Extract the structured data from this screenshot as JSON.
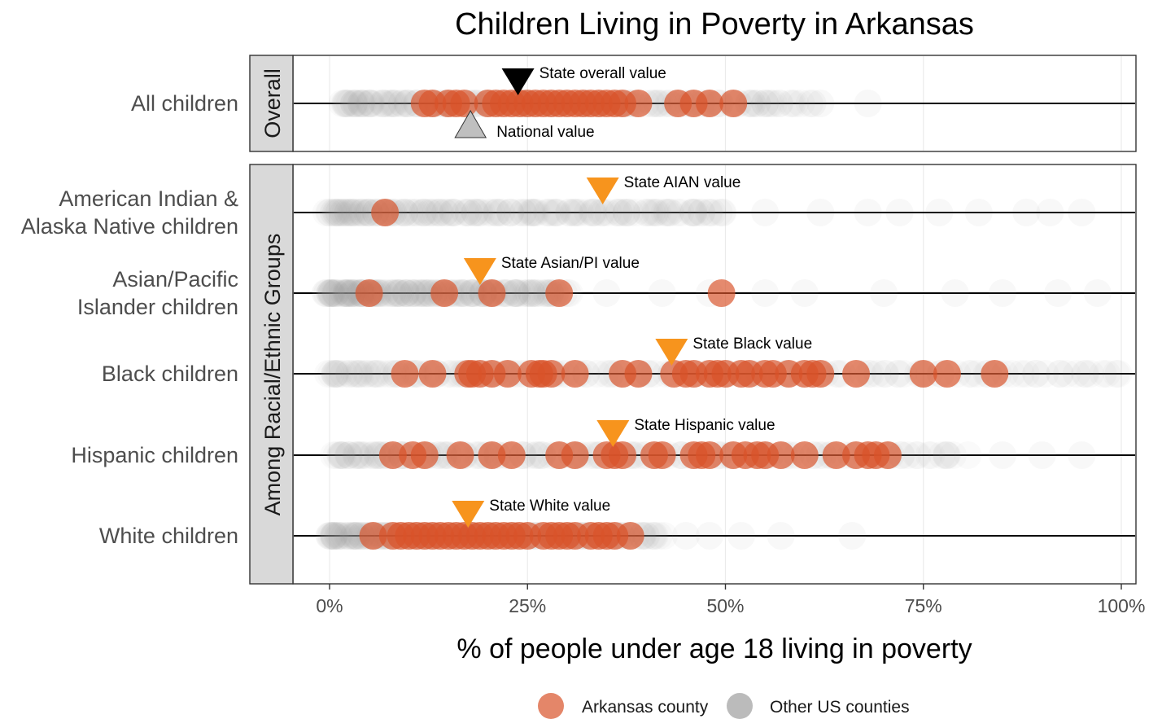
{
  "chart_data": {
    "type": "scatter",
    "title": "Children Living in Poverty in Arkansas",
    "xlabel": "% of people under age 18 living in poverty",
    "xlim": [
      0,
      100
    ],
    "x_ticks": [
      "0%",
      "25%",
      "50%",
      "75%",
      "100%"
    ],
    "x_tick_values": [
      0,
      25,
      50,
      75,
      100
    ],
    "facets": [
      {
        "name": "Overall",
        "rows": [
          "overall"
        ]
      },
      {
        "name": "Among Racial/Ethnic Groups",
        "rows": [
          "aian",
          "asian",
          "black",
          "hispanic",
          "white"
        ]
      }
    ],
    "rows": {
      "overall": {
        "label": [
          "All children"
        ],
        "arkansas": [
          12,
          13,
          15,
          16,
          17,
          20,
          21,
          22,
          23,
          24,
          25,
          26,
          27,
          28,
          29,
          30,
          31,
          32,
          33,
          34,
          35,
          36,
          37,
          39,
          44,
          46,
          48,
          51
        ],
        "other_range": [
          2,
          60
        ],
        "other_sparse": [
          55,
          61,
          62,
          68
        ],
        "state_value": 23.8,
        "state_label": "State overall value",
        "national_value": 17.8,
        "national_label": "National value"
      },
      "aian": {
        "label": [
          "American Indian &",
          "Alaska Native children"
        ],
        "arkansas": [
          7
        ],
        "other_range": [
          0,
          50
        ],
        "other_sparse": [
          55,
          62,
          68,
          72,
          77,
          82,
          88,
          91,
          95
        ],
        "state_value": 34.5,
        "state_label": "State AIAN value"
      },
      "asian": {
        "label": [
          "Asian/Pacific",
          "Islander children"
        ],
        "arkansas": [
          5,
          14.5,
          20.5,
          29,
          49.5
        ],
        "other_range": [
          0,
          30
        ],
        "other_sparse": [
          35,
          42,
          48,
          55,
          60,
          70,
          79,
          85,
          92,
          97
        ],
        "state_value": 19,
        "state_label": "State Asian/PI value"
      },
      "black": {
        "label": [
          "Black children"
        ],
        "arkansas": [
          9.5,
          13,
          17.5,
          18,
          19,
          20.5,
          22.5,
          25.5,
          26.5,
          27,
          28,
          31,
          37,
          39,
          43.5,
          45,
          46,
          48,
          49,
          50,
          52,
          53,
          55,
          56,
          58,
          60,
          61,
          62,
          66.5,
          75,
          78,
          84
        ],
        "other_range": [
          0,
          100
        ],
        "other_sparse": [],
        "state_value": 43.2,
        "state_label": "State Black value"
      },
      "hispanic": {
        "label": [
          "Hispanic children"
        ],
        "arkansas": [
          8,
          10.5,
          12,
          16.5,
          20.5,
          23,
          29,
          31,
          35,
          36,
          37,
          41,
          42,
          46,
          47,
          48,
          51,
          52.5,
          54,
          55,
          57,
          60,
          64,
          66.5,
          68,
          69,
          70.5
        ],
        "other_range": [
          1,
          80
        ],
        "other_sparse": [
          85,
          90,
          95
        ],
        "state_value": 35.8,
        "state_label": "State Hispanic value"
      },
      "white": {
        "label": [
          "White children"
        ],
        "arkansas": [
          5.5,
          8,
          9,
          10,
          11,
          12,
          13,
          14,
          15,
          16,
          17,
          18,
          19,
          20,
          21,
          22,
          23,
          24,
          25,
          27,
          28,
          29,
          30,
          31,
          33,
          34,
          35,
          36,
          38
        ],
        "other_range": [
          0,
          42
        ],
        "other_sparse": [
          45,
          48,
          52,
          57,
          66
        ],
        "state_value": 17.5,
        "state_label": "State White value"
      }
    },
    "colors": {
      "arkansas": "#D9532A",
      "other": "#9E9E9E",
      "state_overall": "#000000",
      "national": "#BFBFBF",
      "state_group": "#F7941D"
    },
    "legend": {
      "position": "bottom",
      "items": [
        {
          "label": "Arkansas county",
          "color": "#D9532A"
        },
        {
          "label": "Other US counties",
          "color": "#9E9E9E"
        }
      ]
    },
    "grid": true
  }
}
